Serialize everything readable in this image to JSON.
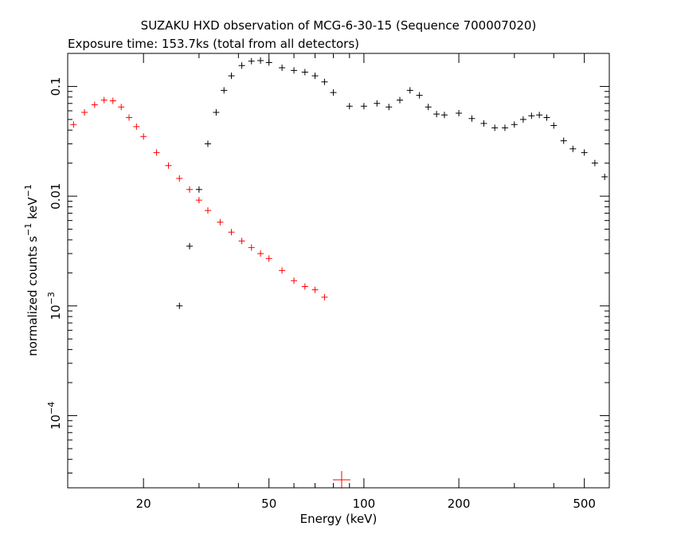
{
  "chart_data": {
    "type": "scatter",
    "title": "SUZAKU HXD observation of MCG-6-30-15 (Sequence 700007020)",
    "subtitle": "Exposure time: 153.7ks (total from all detectors)",
    "xlabel": "Energy (keV)",
    "ylabel": {
      "prefix": "normalized counts s",
      "exp1": "−1",
      "middle": " keV",
      "exp2": "−1"
    },
    "xscale": "log",
    "yscale": "log",
    "xlim": [
      11.5,
      600
    ],
    "ylim": [
      2.2e-05,
      0.2
    ],
    "x_ticks": [
      {
        "value": 20,
        "label": "20"
      },
      {
        "value": 50,
        "label": "50"
      },
      {
        "value": 100,
        "label": "100"
      },
      {
        "value": 200,
        "label": "200"
      },
      {
        "value": 500,
        "label": "500"
      }
    ],
    "y_ticks": [
      {
        "value": 0.0001,
        "base": "10",
        "exp": "−4"
      },
      {
        "value": 0.001,
        "base": "10",
        "exp": "−3"
      },
      {
        "value": 0.01,
        "label": "0.01"
      },
      {
        "value": 0.1,
        "label": "0.1"
      }
    ],
    "series": [
      {
        "color": "#ff0000",
        "x": [
          12,
          13,
          14,
          15,
          16,
          17,
          18,
          19,
          20,
          22,
          24,
          26,
          28,
          30,
          32,
          35,
          38,
          41,
          44,
          47,
          50,
          55,
          60,
          65,
          70,
          75,
          85
        ],
        "y": [
          0.045,
          0.058,
          0.068,
          0.075,
          0.074,
          0.065,
          0.052,
          0.043,
          0.035,
          0.025,
          0.019,
          0.0145,
          0.0115,
          0.0092,
          0.0074,
          0.0058,
          0.0047,
          0.0039,
          0.0034,
          0.003,
          0.0027,
          0.0021,
          0.0017,
          0.0015,
          0.0014,
          0.0012,
          2.6e-05
        ]
      },
      {
        "color": "#000000",
        "x": [
          26,
          28,
          30,
          32,
          34,
          36,
          38,
          41,
          44,
          47,
          50,
          55,
          60,
          65,
          70,
          75,
          80,
          90,
          100,
          110,
          120,
          130,
          140,
          150,
          160,
          170,
          180,
          200,
          220,
          240,
          260,
          280,
          300,
          320,
          340,
          360,
          380,
          400,
          430,
          460,
          500,
          540,
          580
        ],
        "y": [
          0.001,
          0.0035,
          0.0115,
          0.03,
          0.058,
          0.092,
          0.125,
          0.155,
          0.17,
          0.172,
          0.165,
          0.148,
          0.14,
          0.135,
          0.125,
          0.11,
          0.088,
          0.066,
          0.066,
          0.07,
          0.065,
          0.075,
          0.092,
          0.083,
          0.065,
          0.056,
          0.055,
          0.057,
          0.051,
          0.046,
          0.042,
          0.042,
          0.045,
          0.05,
          0.054,
          0.055,
          0.052,
          0.044,
          0.032,
          0.027,
          0.025,
          0.02,
          0.015
        ]
      }
    ]
  }
}
